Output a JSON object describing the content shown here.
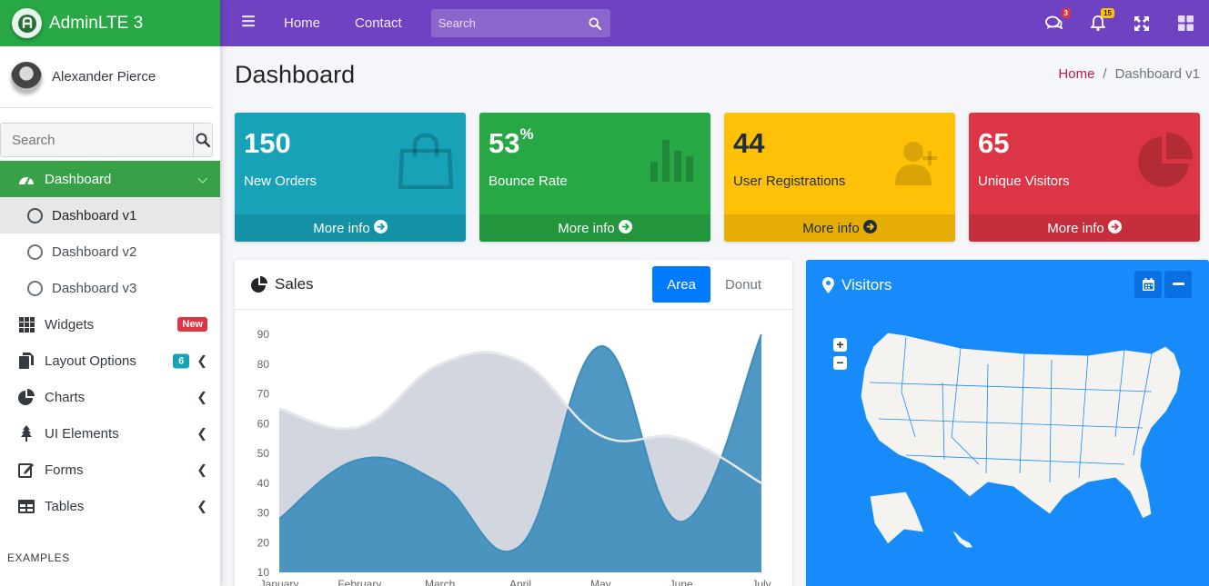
{
  "brand": {
    "name": "AdminLTE 3"
  },
  "user": {
    "name": "Alexander Pierce"
  },
  "sidebar": {
    "search_placeholder": "Search",
    "items": [
      {
        "label": "Dashboard",
        "icon": "tachometer-icon"
      },
      {
        "label": "Dashboard v1"
      },
      {
        "label": "Dashboard v2"
      },
      {
        "label": "Dashboard v3"
      },
      {
        "label": "Widgets",
        "badge": "New"
      },
      {
        "label": "Layout Options",
        "badge": "6"
      },
      {
        "label": "Charts"
      },
      {
        "label": "UI Elements"
      },
      {
        "label": "Forms"
      },
      {
        "label": "Tables"
      }
    ],
    "section_header": "EXAMPLES"
  },
  "topbar": {
    "links": [
      "Home",
      "Contact"
    ],
    "search_placeholder": "Search",
    "messages_count": "3",
    "notifications_count": "15"
  },
  "page": {
    "title": "Dashboard",
    "breadcrumb": [
      "Home",
      "Dashboard v1"
    ]
  },
  "stats": [
    {
      "value": "150",
      "label": "New Orders",
      "more": "More info",
      "color": "#17a2b8"
    },
    {
      "value": "53",
      "suffix": "%",
      "label": "Bounce Rate",
      "more": "More info",
      "color": "#28a745"
    },
    {
      "value": "44",
      "label": "User Registrations",
      "more": "More info",
      "color": "#ffc107"
    },
    {
      "value": "65",
      "label": "Unique Visitors",
      "more": "More info",
      "color": "#dc3545"
    }
  ],
  "sales": {
    "title": "Sales",
    "tabs": [
      "Area",
      "Donut"
    ],
    "active_tab": "Area"
  },
  "visitors": {
    "title": "Visitors"
  },
  "chart_data": {
    "type": "area",
    "categories": [
      "January",
      "February",
      "March",
      "April",
      "May",
      "June",
      "July"
    ],
    "series": [
      {
        "values": [
          65,
          59,
          80,
          81,
          56,
          55,
          40
        ],
        "color": "#d2d6de"
      },
      {
        "values": [
          28,
          48,
          40,
          19,
          86,
          27,
          90
        ],
        "color": "#3c8dbc"
      }
    ],
    "ylim": [
      10,
      90
    ],
    "yticks": [
      90,
      80,
      70,
      60,
      50,
      40,
      30,
      20,
      10
    ],
    "grid": false
  }
}
